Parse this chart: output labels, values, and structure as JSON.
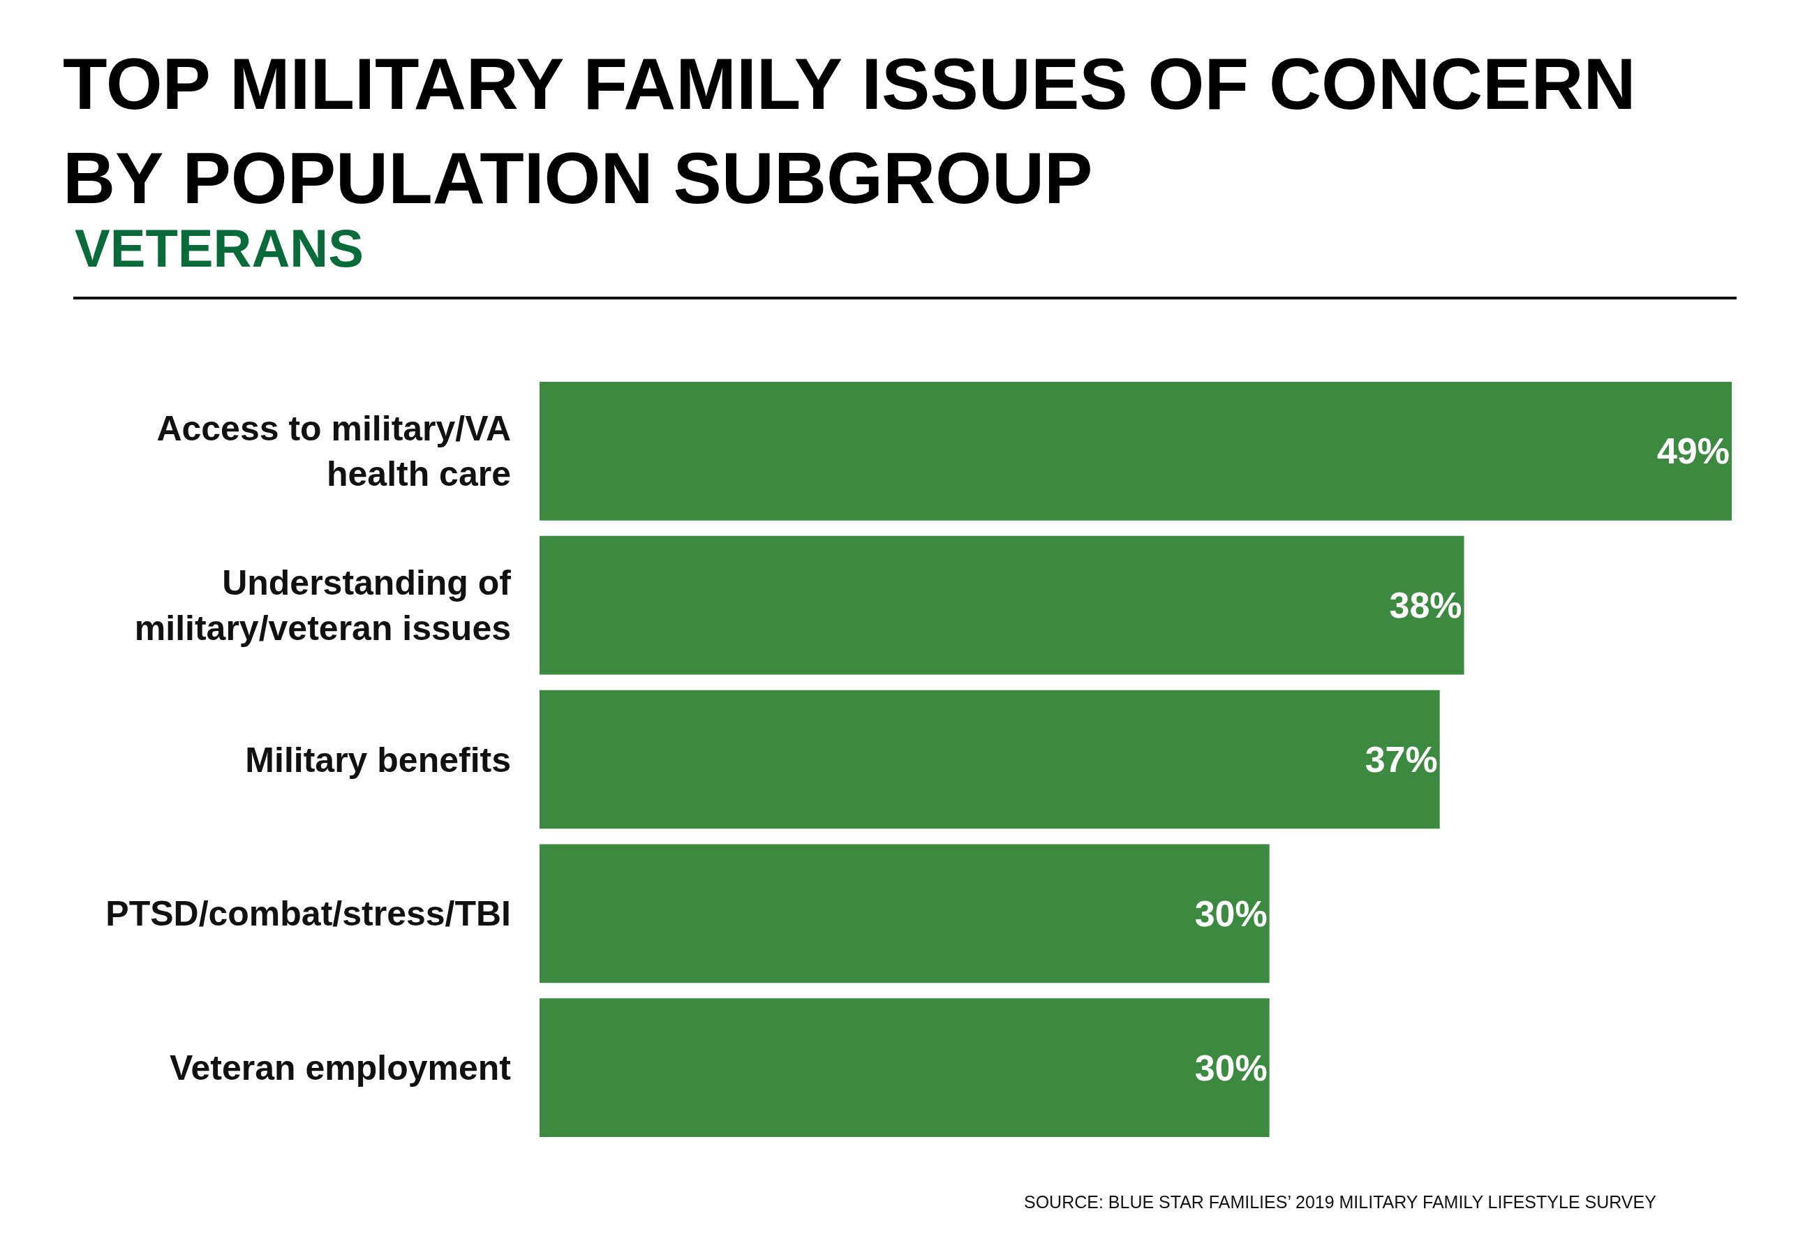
{
  "chart_data": {
    "type": "bar",
    "orientation": "horizontal",
    "title": "TOP MILITARY FAMILY ISSUES OF CONCERN BY POPULATION SUBGROUP",
    "subtitle": "VETERANS",
    "categories": [
      "Access to military/VA health care",
      "Understanding of military/veteran issues",
      "Military benefits",
      "PTSD/combat/stress/TBI",
      "Veteran employment"
    ],
    "values": [
      49,
      38,
      37,
      30,
      30
    ],
    "value_labels": [
      "49%",
      "38%",
      "37%",
      "30%",
      "30%"
    ],
    "color": "#3c8a40",
    "xlim": [
      0,
      49
    ],
    "tick_labels": "y",
    "legend": false,
    "annotations": [
      "SOURCE: BLUE STAR FAMILIES’ 2019 MILITARY FAMILY LIFESTYLE SURVEY"
    ]
  }
}
